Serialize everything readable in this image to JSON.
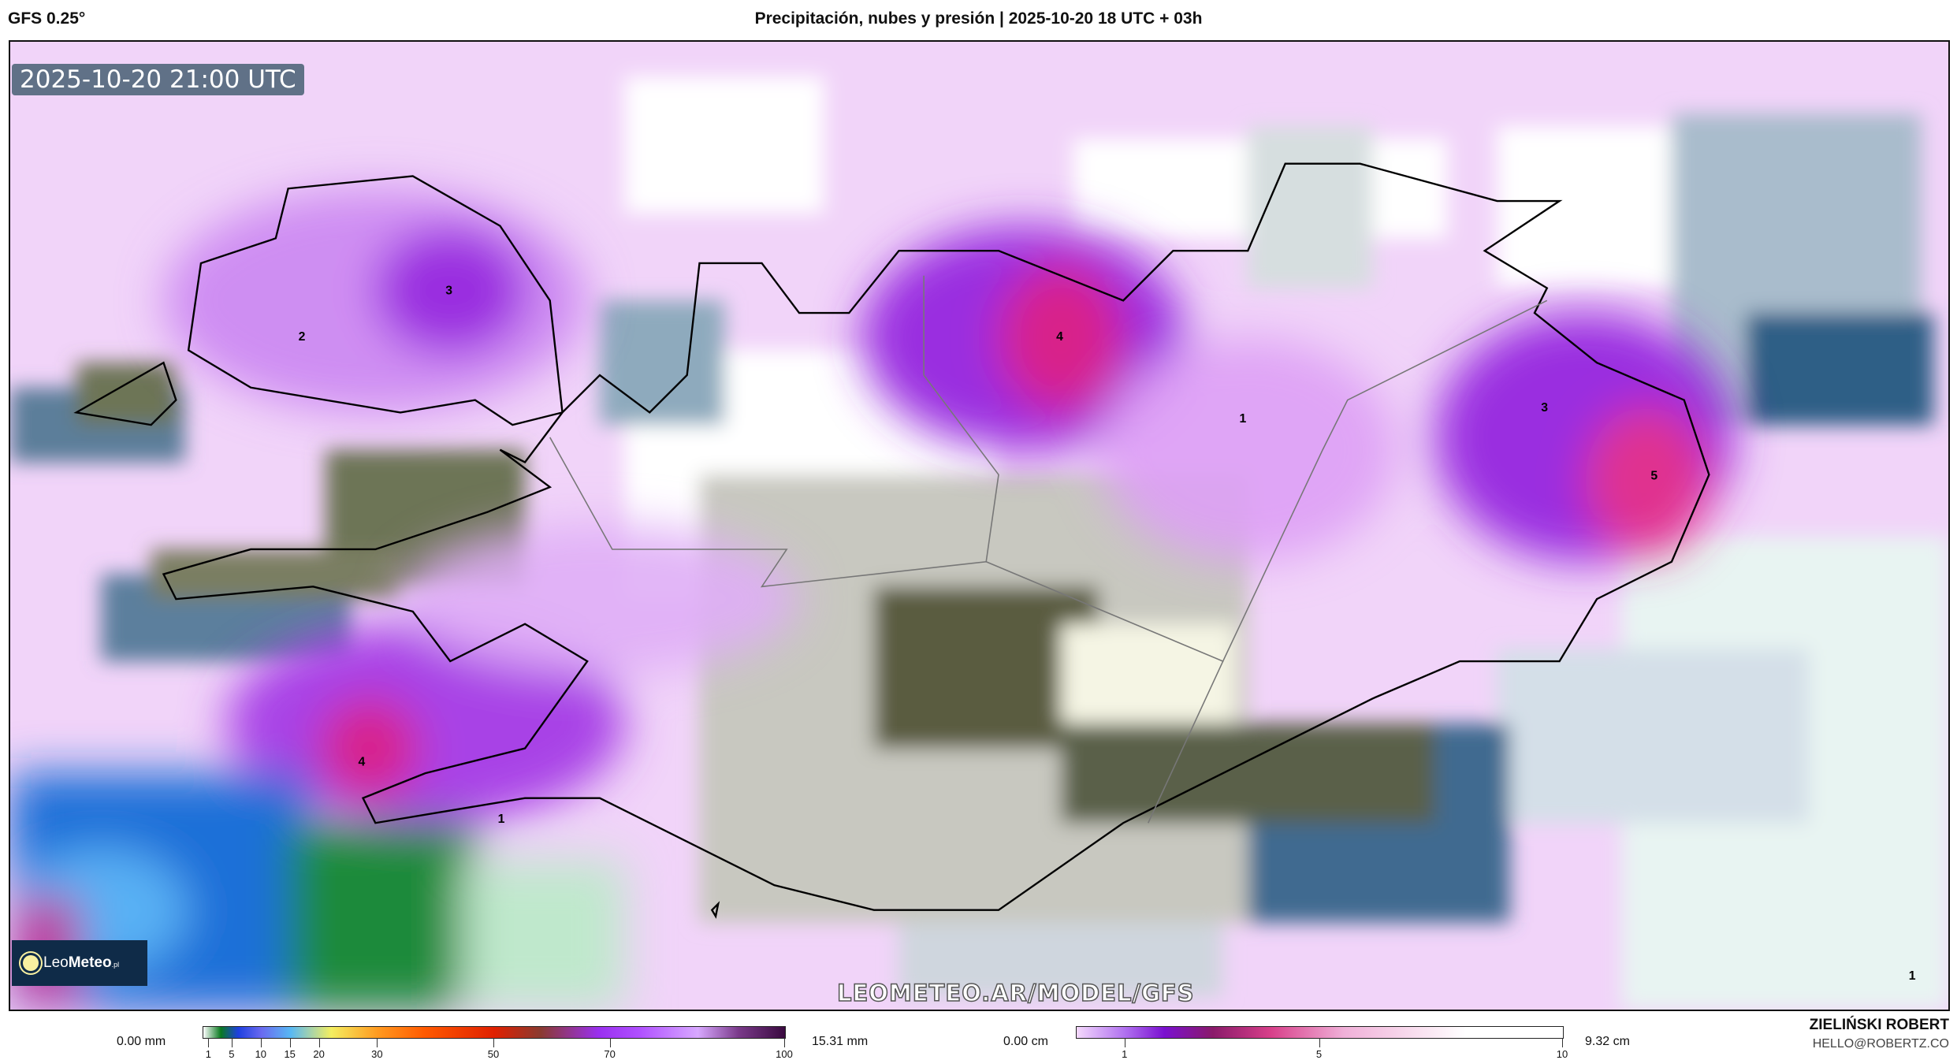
{
  "header": {
    "model": "GFS 0.25°",
    "title": "Precipitación, nubes y presión | 2025-10-20 18 UTC + 03h"
  },
  "map": {
    "timestamp": "2025-10-20 21:00 UTC",
    "watermark": "LEOMETEO.AR/MODEL/GFS",
    "logo": {
      "brand_light": "Leo",
      "brand_bold": "Meteo",
      "suffix": ".pl"
    },
    "value_labels": [
      "3",
      "2",
      "4",
      "1",
      "3",
      "5",
      "4",
      "1",
      "1"
    ]
  },
  "legend_precip": {
    "min_label": "0.00 mm",
    "max_label": "15.31 mm",
    "ticks": [
      "1",
      "5",
      "10",
      "15",
      "20",
      "30",
      "50",
      "70",
      "100"
    ],
    "tick_values": [
      1,
      5,
      10,
      15,
      20,
      30,
      50,
      70,
      100
    ]
  },
  "legend_snow": {
    "min_label": "0.00 cm",
    "max_label": "9.32 cm",
    "ticks": [
      "1",
      "5",
      "10"
    ],
    "tick_values": [
      1,
      5,
      10
    ]
  },
  "author": {
    "name": "ZIELIŃSKI ROBERT",
    "email": "HELLO@ROBERTZ.CO"
  },
  "colors": {
    "precip_purple": "#9a2ee0",
    "precip_magenta": "#d8208a",
    "cloud_lavender": "#efcdf8",
    "cloud_blue": "#2f5f86",
    "logo_bg": "#0f2b48"
  }
}
